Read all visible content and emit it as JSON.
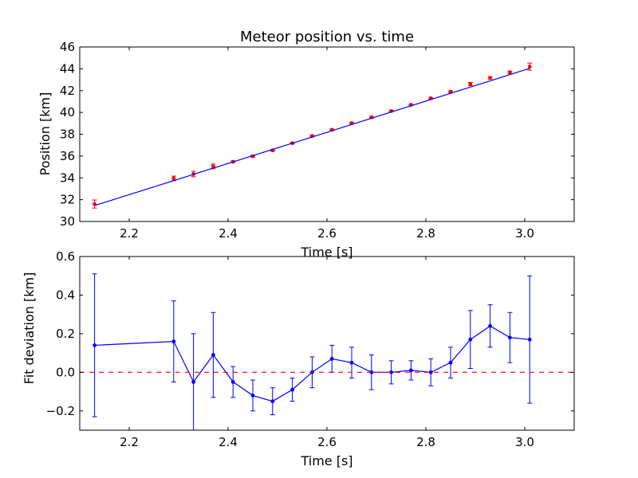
{
  "chart_data": [
    {
      "type": "scatter",
      "title": "Meteor position vs. time",
      "xlabel": "Time [s]",
      "ylabel": "Position [km]",
      "xlim": [
        2.1,
        3.1
      ],
      "ylim": [
        30,
        46
      ],
      "xticks": [
        "2.2",
        "2.4",
        "2.6",
        "2.8",
        "3.0"
      ],
      "yticks": [
        "30",
        "32",
        "34",
        "36",
        "38",
        "40",
        "42",
        "44",
        "46"
      ],
      "grid": false,
      "series": [
        {
          "role": "measurements",
          "style": "points with error bars",
          "color": "#ff0000",
          "x": [
            2.13,
            2.29,
            2.33,
            2.37,
            2.41,
            2.45,
            2.49,
            2.53,
            2.57,
            2.61,
            2.65,
            2.69,
            2.73,
            2.77,
            2.81,
            2.85,
            2.89,
            2.93,
            2.97,
            3.01
          ],
          "y": [
            31.6,
            33.95,
            34.35,
            35.05,
            35.48,
            35.98,
            36.52,
            37.18,
            37.84,
            38.41,
            39.02,
            39.55,
            40.13,
            40.7,
            41.3,
            41.9,
            42.6,
            43.17,
            43.67,
            44.2
          ],
          "yerr": [
            0.37,
            0.21,
            0.25,
            0.22,
            0.08,
            0.08,
            0.07,
            0.06,
            0.08,
            0.07,
            0.08,
            0.09,
            0.06,
            0.05,
            0.07,
            0.08,
            0.15,
            0.11,
            0.13,
            0.33
          ]
        },
        {
          "role": "fit",
          "style": "line",
          "color": "#0000ff",
          "x": [
            2.13,
            3.01
          ],
          "y": [
            31.46,
            44.04
          ]
        }
      ]
    },
    {
      "type": "line",
      "title": "",
      "xlabel": "Time [s]",
      "ylabel": "Fit deviation [km]",
      "xlim": [
        2.1,
        3.1
      ],
      "ylim": [
        -0.3,
        0.6
      ],
      "xticks": [
        "2.2",
        "2.4",
        "2.6",
        "2.8",
        "3.0"
      ],
      "yticks": [
        "−0.2",
        "0.0",
        "0.2",
        "0.4",
        "0.6"
      ],
      "grid": false,
      "series": [
        {
          "role": "deviation",
          "style": "line with markers and error bars",
          "color": "#0000ff",
          "x": [
            2.13,
            2.29,
            2.33,
            2.37,
            2.41,
            2.45,
            2.49,
            2.53,
            2.57,
            2.61,
            2.65,
            2.69,
            2.73,
            2.77,
            2.81,
            2.85,
            2.89,
            2.93,
            2.97,
            3.01
          ],
          "y": [
            0.14,
            0.16,
            -0.05,
            0.09,
            -0.05,
            -0.12,
            -0.15,
            -0.09,
            0.0,
            0.07,
            0.05,
            0.0,
            0.0,
            0.01,
            0.0,
            0.05,
            0.17,
            0.24,
            0.18,
            0.17
          ],
          "yerr": [
            0.37,
            0.21,
            0.25,
            0.22,
            0.08,
            0.08,
            0.07,
            0.06,
            0.08,
            0.07,
            0.08,
            0.09,
            0.06,
            0.05,
            0.07,
            0.08,
            0.15,
            0.11,
            0.13,
            0.33
          ]
        },
        {
          "role": "zero-line",
          "style": "dashed",
          "color": "#ff0000",
          "y": 0.0
        }
      ]
    }
  ]
}
